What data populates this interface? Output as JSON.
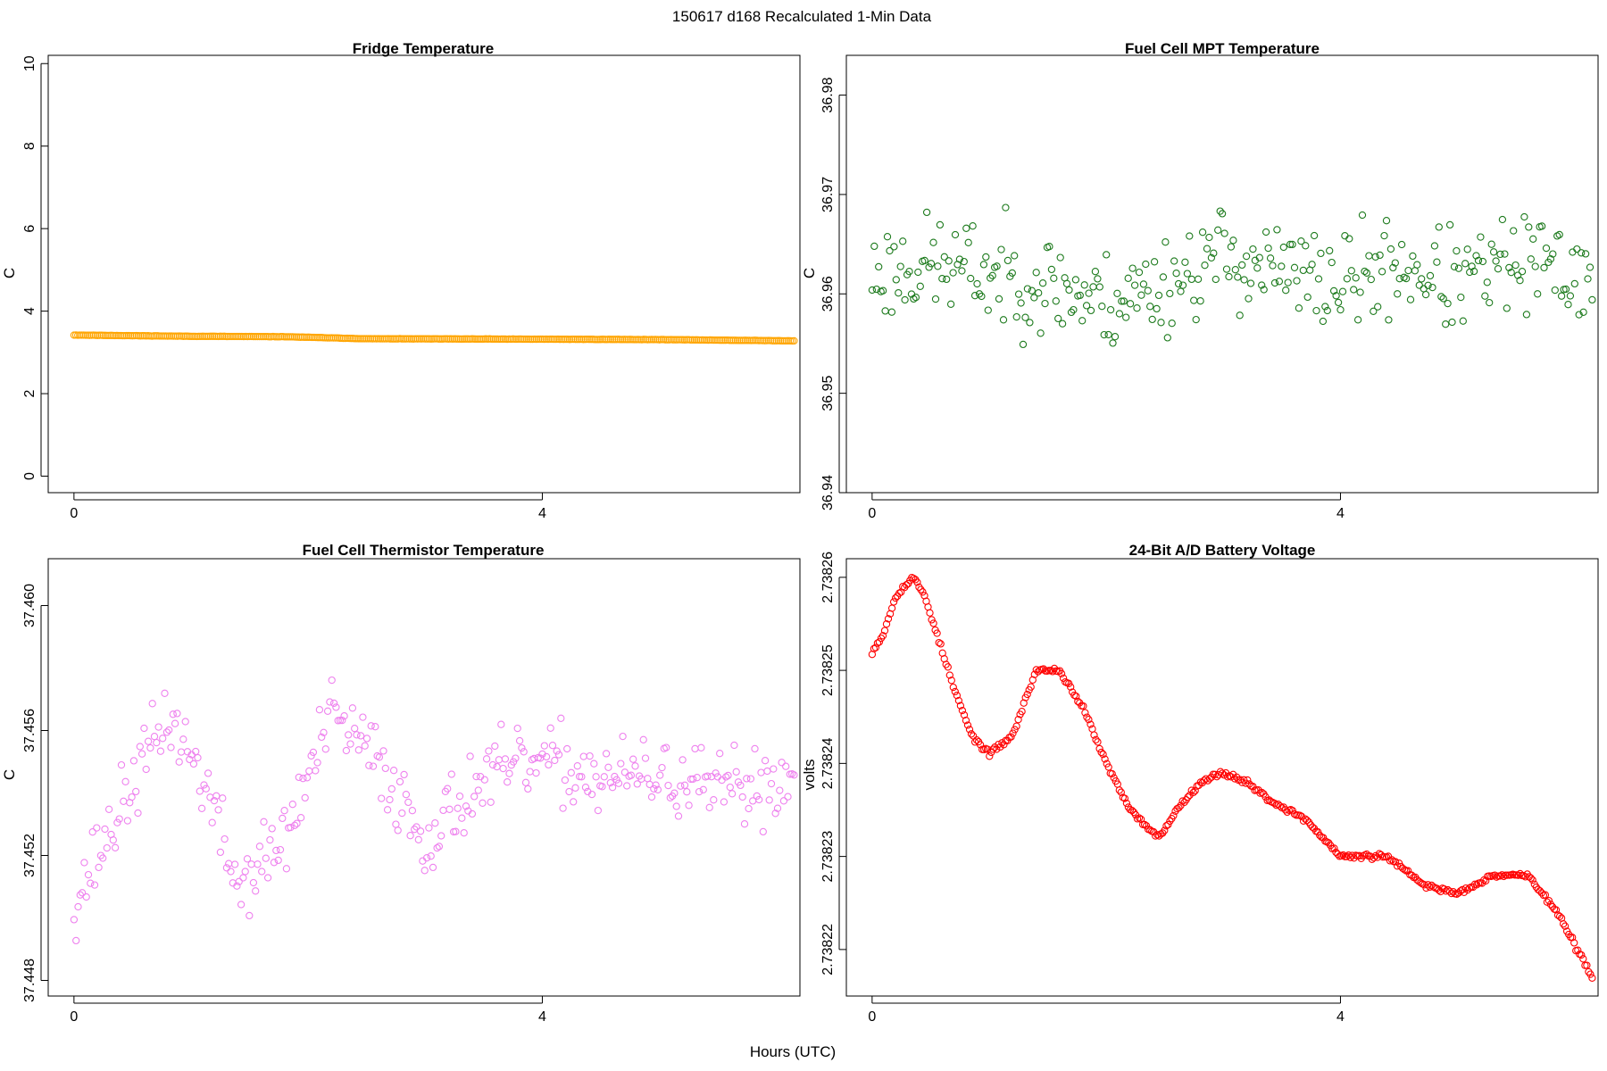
{
  "figure": {
    "suptitle": "150617   d168   Recalculated 1-Min Data",
    "xlabel": "Hours (UTC)"
  },
  "chart_data": [
    {
      "type": "scatter",
      "title": "Fridge Temperature",
      "ylabel": "C",
      "xlabel": "",
      "color": "#FFA500",
      "xlim": [
        -0.22,
        6.2
      ],
      "ylim": [
        -0.4,
        10.2
      ],
      "xticks": [
        {
          "v": 0,
          "label": "0"
        },
        {
          "v": 4,
          "label": "4"
        }
      ],
      "yticks": [
        {
          "v": 0,
          "label": "0"
        },
        {
          "v": 2,
          "label": "2"
        },
        {
          "v": 4,
          "label": "4"
        },
        {
          "v": 6,
          "label": "6"
        },
        {
          "v": 8,
          "label": "8"
        },
        {
          "v": 10,
          "label": "10"
        }
      ],
      "keypoints": [
        [
          0,
          3.42
        ],
        [
          1.0,
          3.39
        ],
        [
          1.8,
          3.38
        ],
        [
          2.5,
          3.33
        ],
        [
          4.0,
          3.32
        ],
        [
          5.0,
          3.31
        ],
        [
          6.15,
          3.28
        ]
      ],
      "n": 370,
      "jitter": 0.005,
      "seed": 11
    },
    {
      "type": "scatter",
      "title": "Fuel Cell MPT Temperature",
      "ylabel": "C",
      "xlabel": "",
      "color": "#1E7B1E",
      "xlim": [
        -0.22,
        6.2
      ],
      "ylim": [
        36.94,
        36.984
      ],
      "xticks": [
        {
          "v": 0,
          "label": "0"
        },
        {
          "v": 4,
          "label": "4"
        }
      ],
      "yticks": [
        {
          "v": 36.94,
          "label": "36.94"
        },
        {
          "v": 36.95,
          "label": "36.95"
        },
        {
          "v": 36.96,
          "label": "36.96"
        },
        {
          "v": 36.97,
          "label": "36.97"
        },
        {
          "v": 36.98,
          "label": "36.98"
        }
      ],
      "keypoints": [
        [
          0,
          36.962
        ],
        [
          0.5,
          36.963
        ],
        [
          1.0,
          36.962
        ],
        [
          1.5,
          36.961
        ],
        [
          2.0,
          36.959
        ],
        [
          2.5,
          36.961
        ],
        [
          3.0,
          36.964
        ],
        [
          3.5,
          36.962
        ],
        [
          4.0,
          36.961
        ],
        [
          4.5,
          36.963
        ],
        [
          5.0,
          36.961
        ],
        [
          5.5,
          36.963
        ],
        [
          6.15,
          36.962
        ]
      ],
      "n": 330,
      "jitter": 0.0075,
      "seed": 23
    },
    {
      "type": "scatter",
      "title": "Fuel Cell Thermistor Temperature",
      "ylabel": "C",
      "xlabel": "",
      "color": "#EE82EE",
      "xlim": [
        -0.22,
        6.2
      ],
      "ylim": [
        37.4475,
        37.4615
      ],
      "xticks": [
        {
          "v": 0,
          "label": "0"
        },
        {
          "v": 4,
          "label": "4"
        }
      ],
      "yticks": [
        {
          "v": 37.448,
          "label": "37.448"
        },
        {
          "v": 37.452,
          "label": "37.452"
        },
        {
          "v": 37.456,
          "label": "37.456"
        },
        {
          "v": 37.46,
          "label": "37.460"
        }
      ],
      "keypoints": [
        [
          0,
          37.4505
        ],
        [
          0.4,
          37.4535
        ],
        [
          0.8,
          37.4565
        ],
        [
          1.1,
          37.4545
        ],
        [
          1.4,
          37.451
        ],
        [
          1.8,
          37.4525
        ],
        [
          2.2,
          37.4565
        ],
        [
          2.6,
          37.455
        ],
        [
          3.0,
          37.4525
        ],
        [
          3.5,
          37.4545
        ],
        [
          4.0,
          37.455
        ],
        [
          4.5,
          37.4545
        ],
        [
          5.0,
          37.4545
        ],
        [
          5.5,
          37.454
        ],
        [
          6.15,
          37.4545
        ]
      ],
      "n": 350,
      "jitter": 0.0018,
      "seed": 37
    },
    {
      "type": "scatter",
      "title": "24-Bit A/D Battery Voltage",
      "ylabel": "volts",
      "xlabel": "",
      "color": "#FF0000",
      "xlim": [
        -0.22,
        6.2
      ],
      "ylim": [
        2.738215,
        2.738262
      ],
      "xticks": [
        {
          "v": 0,
          "label": "0"
        },
        {
          "v": 4,
          "label": "4"
        }
      ],
      "yticks": [
        {
          "v": 2.73822,
          "label": "2.73822"
        },
        {
          "v": 2.73823,
          "label": "2.73823"
        },
        {
          "v": 2.73824,
          "label": "2.73824"
        },
        {
          "v": 2.73825,
          "label": "2.73825"
        },
        {
          "v": 2.73826,
          "label": "2.73826"
        }
      ],
      "keypoints": [
        [
          0,
          2.738252
        ],
        [
          0.1,
          2.738254
        ],
        [
          0.2,
          2.738258
        ],
        [
          0.35,
          2.73826
        ],
        [
          0.45,
          2.738258
        ],
        [
          0.55,
          2.738254
        ],
        [
          0.7,
          2.738248
        ],
        [
          0.85,
          2.738243
        ],
        [
          1.0,
          2.738241
        ],
        [
          1.2,
          2.738243
        ],
        [
          1.4,
          2.73825
        ],
        [
          1.6,
          2.73825
        ],
        [
          1.8,
          2.738246
        ],
        [
          2.0,
          2.73824
        ],
        [
          2.2,
          2.738235
        ],
        [
          2.45,
          2.738232
        ],
        [
          2.6,
          2.738235
        ],
        [
          2.8,
          2.738238
        ],
        [
          3.0,
          2.738239
        ],
        [
          3.2,
          2.738238
        ],
        [
          3.4,
          2.738236
        ],
        [
          3.7,
          2.738234
        ],
        [
          4.0,
          2.73823
        ],
        [
          4.4,
          2.73823
        ],
        [
          4.7,
          2.738227
        ],
        [
          5.0,
          2.738226
        ],
        [
          5.3,
          2.738228
        ],
        [
          5.6,
          2.738228
        ],
        [
          5.85,
          2.738224
        ],
        [
          6.15,
          2.738217
        ]
      ],
      "n": 400,
      "jitter": 4e-07,
      "seed": 53
    }
  ]
}
